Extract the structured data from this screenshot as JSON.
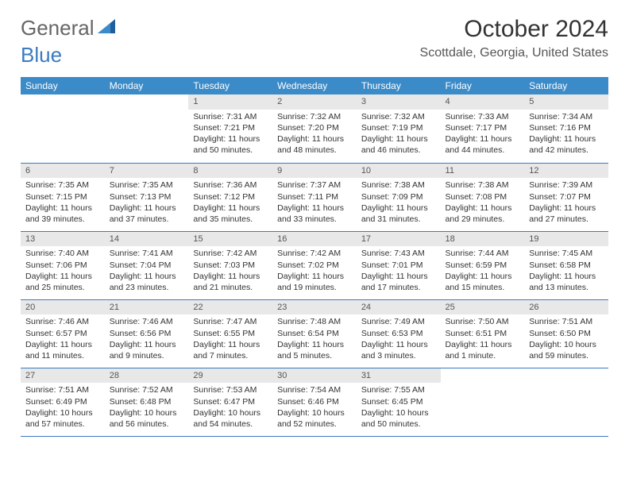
{
  "logo": {
    "word1": "General",
    "word2": "Blue"
  },
  "title": "October 2024",
  "location": "Scottdale, Georgia, United States",
  "colors": {
    "header_bg": "#3b8bc9",
    "header_fg": "#ffffff",
    "daynum_bg": "#e8e8e8",
    "rule": "#3b7bbf",
    "logo_gray": "#666666",
    "logo_blue": "#3b7bbf"
  },
  "weekdays": [
    "Sunday",
    "Monday",
    "Tuesday",
    "Wednesday",
    "Thursday",
    "Friday",
    "Saturday"
  ],
  "cells": [
    {
      "n": "",
      "sr": "",
      "ss": "",
      "dl": ""
    },
    {
      "n": "",
      "sr": "",
      "ss": "",
      "dl": ""
    },
    {
      "n": "1",
      "sr": "Sunrise: 7:31 AM",
      "ss": "Sunset: 7:21 PM",
      "dl": "Daylight: 11 hours and 50 minutes."
    },
    {
      "n": "2",
      "sr": "Sunrise: 7:32 AM",
      "ss": "Sunset: 7:20 PM",
      "dl": "Daylight: 11 hours and 48 minutes."
    },
    {
      "n": "3",
      "sr": "Sunrise: 7:32 AM",
      "ss": "Sunset: 7:19 PM",
      "dl": "Daylight: 11 hours and 46 minutes."
    },
    {
      "n": "4",
      "sr": "Sunrise: 7:33 AM",
      "ss": "Sunset: 7:17 PM",
      "dl": "Daylight: 11 hours and 44 minutes."
    },
    {
      "n": "5",
      "sr": "Sunrise: 7:34 AM",
      "ss": "Sunset: 7:16 PM",
      "dl": "Daylight: 11 hours and 42 minutes."
    },
    {
      "n": "6",
      "sr": "Sunrise: 7:35 AM",
      "ss": "Sunset: 7:15 PM",
      "dl": "Daylight: 11 hours and 39 minutes."
    },
    {
      "n": "7",
      "sr": "Sunrise: 7:35 AM",
      "ss": "Sunset: 7:13 PM",
      "dl": "Daylight: 11 hours and 37 minutes."
    },
    {
      "n": "8",
      "sr": "Sunrise: 7:36 AM",
      "ss": "Sunset: 7:12 PM",
      "dl": "Daylight: 11 hours and 35 minutes."
    },
    {
      "n": "9",
      "sr": "Sunrise: 7:37 AM",
      "ss": "Sunset: 7:11 PM",
      "dl": "Daylight: 11 hours and 33 minutes."
    },
    {
      "n": "10",
      "sr": "Sunrise: 7:38 AM",
      "ss": "Sunset: 7:09 PM",
      "dl": "Daylight: 11 hours and 31 minutes."
    },
    {
      "n": "11",
      "sr": "Sunrise: 7:38 AM",
      "ss": "Sunset: 7:08 PM",
      "dl": "Daylight: 11 hours and 29 minutes."
    },
    {
      "n": "12",
      "sr": "Sunrise: 7:39 AM",
      "ss": "Sunset: 7:07 PM",
      "dl": "Daylight: 11 hours and 27 minutes."
    },
    {
      "n": "13",
      "sr": "Sunrise: 7:40 AM",
      "ss": "Sunset: 7:06 PM",
      "dl": "Daylight: 11 hours and 25 minutes."
    },
    {
      "n": "14",
      "sr": "Sunrise: 7:41 AM",
      "ss": "Sunset: 7:04 PM",
      "dl": "Daylight: 11 hours and 23 minutes."
    },
    {
      "n": "15",
      "sr": "Sunrise: 7:42 AM",
      "ss": "Sunset: 7:03 PM",
      "dl": "Daylight: 11 hours and 21 minutes."
    },
    {
      "n": "16",
      "sr": "Sunrise: 7:42 AM",
      "ss": "Sunset: 7:02 PM",
      "dl": "Daylight: 11 hours and 19 minutes."
    },
    {
      "n": "17",
      "sr": "Sunrise: 7:43 AM",
      "ss": "Sunset: 7:01 PM",
      "dl": "Daylight: 11 hours and 17 minutes."
    },
    {
      "n": "18",
      "sr": "Sunrise: 7:44 AM",
      "ss": "Sunset: 6:59 PM",
      "dl": "Daylight: 11 hours and 15 minutes."
    },
    {
      "n": "19",
      "sr": "Sunrise: 7:45 AM",
      "ss": "Sunset: 6:58 PM",
      "dl": "Daylight: 11 hours and 13 minutes."
    },
    {
      "n": "20",
      "sr": "Sunrise: 7:46 AM",
      "ss": "Sunset: 6:57 PM",
      "dl": "Daylight: 11 hours and 11 minutes."
    },
    {
      "n": "21",
      "sr": "Sunrise: 7:46 AM",
      "ss": "Sunset: 6:56 PM",
      "dl": "Daylight: 11 hours and 9 minutes."
    },
    {
      "n": "22",
      "sr": "Sunrise: 7:47 AM",
      "ss": "Sunset: 6:55 PM",
      "dl": "Daylight: 11 hours and 7 minutes."
    },
    {
      "n": "23",
      "sr": "Sunrise: 7:48 AM",
      "ss": "Sunset: 6:54 PM",
      "dl": "Daylight: 11 hours and 5 minutes."
    },
    {
      "n": "24",
      "sr": "Sunrise: 7:49 AM",
      "ss": "Sunset: 6:53 PM",
      "dl": "Daylight: 11 hours and 3 minutes."
    },
    {
      "n": "25",
      "sr": "Sunrise: 7:50 AM",
      "ss": "Sunset: 6:51 PM",
      "dl": "Daylight: 11 hours and 1 minute."
    },
    {
      "n": "26",
      "sr": "Sunrise: 7:51 AM",
      "ss": "Sunset: 6:50 PM",
      "dl": "Daylight: 10 hours and 59 minutes."
    },
    {
      "n": "27",
      "sr": "Sunrise: 7:51 AM",
      "ss": "Sunset: 6:49 PM",
      "dl": "Daylight: 10 hours and 57 minutes."
    },
    {
      "n": "28",
      "sr": "Sunrise: 7:52 AM",
      "ss": "Sunset: 6:48 PM",
      "dl": "Daylight: 10 hours and 56 minutes."
    },
    {
      "n": "29",
      "sr": "Sunrise: 7:53 AM",
      "ss": "Sunset: 6:47 PM",
      "dl": "Daylight: 10 hours and 54 minutes."
    },
    {
      "n": "30",
      "sr": "Sunrise: 7:54 AM",
      "ss": "Sunset: 6:46 PM",
      "dl": "Daylight: 10 hours and 52 minutes."
    },
    {
      "n": "31",
      "sr": "Sunrise: 7:55 AM",
      "ss": "Sunset: 6:45 PM",
      "dl": "Daylight: 10 hours and 50 minutes."
    },
    {
      "n": "",
      "sr": "",
      "ss": "",
      "dl": ""
    },
    {
      "n": "",
      "sr": "",
      "ss": "",
      "dl": ""
    }
  ]
}
